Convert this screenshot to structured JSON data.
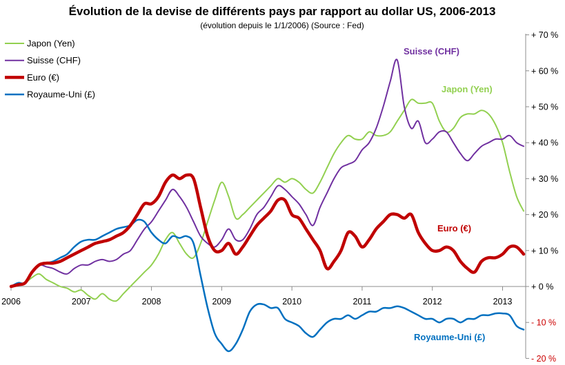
{
  "chart_data": {
    "type": "line",
    "title": "Évolution de la devise de différents pays par rapport au dollar US, 2006-2013",
    "subtitle": "(évolution depuis le 1/1/2006) (Source : Fed)",
    "x_ticks": [
      "2006",
      "2007",
      "2008",
      "2009",
      "2010",
      "2011",
      "2012",
      "2013"
    ],
    "y_ticks": [
      {
        "value": 70,
        "label": "+ 70 %"
      },
      {
        "value": 60,
        "label": "+ 60 %"
      },
      {
        "value": 50,
        "label": "+ 50 %"
      },
      {
        "value": 40,
        "label": "+ 40 %"
      },
      {
        "value": 30,
        "label": "+ 30 %"
      },
      {
        "value": 20,
        "label": "+ 20 %"
      },
      {
        "value": 10,
        "label": "+ 10 %"
      },
      {
        "value": 0,
        "label": "+ 0 %"
      },
      {
        "value": -10,
        "label": "- 10 %"
      },
      {
        "value": -20,
        "label": "- 20 %"
      }
    ],
    "negative_tick_color": "#cc0000",
    "xlim": [
      2006.0,
      2013.35
    ],
    "ylim": [
      -20,
      72
    ],
    "grid": false,
    "legend_position": "top-left",
    "series": [
      {
        "name": "Japon (Yen)",
        "color": "#92d050",
        "width": 2,
        "annotation": "Japon (Yen)",
        "x": [
          2006.0,
          2006.1,
          2006.2,
          2006.3,
          2006.4,
          2006.5,
          2006.6,
          2006.7,
          2006.8,
          2006.9,
          2007.0,
          2007.1,
          2007.2,
          2007.3,
          2007.4,
          2007.5,
          2007.6,
          2007.7,
          2007.8,
          2007.9,
          2008.0,
          2008.1,
          2008.2,
          2008.3,
          2008.4,
          2008.5,
          2008.6,
          2008.7,
          2008.8,
          2008.9,
          2009.0,
          2009.1,
          2009.2,
          2009.3,
          2009.4,
          2009.5,
          2009.6,
          2009.7,
          2009.8,
          2009.9,
          2010.0,
          2010.1,
          2010.2,
          2010.3,
          2010.4,
          2010.5,
          2010.6,
          2010.7,
          2010.8,
          2010.9,
          2011.0,
          2011.1,
          2011.2,
          2011.3,
          2011.4,
          2011.5,
          2011.6,
          2011.7,
          2011.8,
          2011.9,
          2012.0,
          2012.1,
          2012.2,
          2012.3,
          2012.4,
          2012.5,
          2012.6,
          2012.7,
          2012.8,
          2012.9,
          2013.0,
          2013.1,
          2013.2,
          2013.3
        ],
        "y": [
          0,
          0.5,
          1,
          2.5,
          3.5,
          2,
          1,
          0,
          -0.5,
          -1.5,
          -1,
          -2.5,
          -3.5,
          -2,
          -3.5,
          -4,
          -2,
          0,
          2,
          4,
          6,
          9,
          13,
          15,
          12,
          9,
          8,
          12,
          18,
          24,
          29,
          25,
          19,
          20,
          22,
          24,
          26,
          28,
          30,
          29,
          30,
          29,
          27,
          26,
          29,
          33,
          37,
          40,
          42,
          41,
          41,
          43,
          42,
          42,
          43,
          46,
          49,
          52,
          51,
          51,
          51,
          46,
          43,
          44,
          47,
          48,
          48,
          49,
          48,
          45,
          40,
          32,
          25,
          21
        ]
      },
      {
        "name": "Suisse (CHF)",
        "color": "#7030a0",
        "width": 2,
        "annotation": "Suisse (CHF)",
        "x": [
          2006.0,
          2006.1,
          2006.2,
          2006.3,
          2006.4,
          2006.5,
          2006.6,
          2006.7,
          2006.8,
          2006.9,
          2007.0,
          2007.1,
          2007.2,
          2007.3,
          2007.4,
          2007.5,
          2007.6,
          2007.7,
          2007.8,
          2007.9,
          2008.0,
          2008.1,
          2008.2,
          2008.3,
          2008.4,
          2008.5,
          2008.6,
          2008.7,
          2008.8,
          2008.9,
          2009.0,
          2009.1,
          2009.2,
          2009.3,
          2009.4,
          2009.5,
          2009.6,
          2009.7,
          2009.8,
          2009.9,
          2010.0,
          2010.1,
          2010.2,
          2010.3,
          2010.4,
          2010.5,
          2010.6,
          2010.7,
          2010.8,
          2010.9,
          2011.0,
          2011.1,
          2011.2,
          2011.3,
          2011.4,
          2011.5,
          2011.6,
          2011.7,
          2011.8,
          2011.9,
          2012.0,
          2012.1,
          2012.2,
          2012.3,
          2012.4,
          2012.5,
          2012.6,
          2012.7,
          2012.8,
          2012.9,
          2013.0,
          2013.1,
          2013.2,
          2013.3
        ],
        "y": [
          0,
          0.5,
          1,
          4,
          6,
          5.5,
          5,
          4,
          3.5,
          5,
          6,
          6,
          7,
          7.5,
          7,
          7.5,
          9,
          10,
          13,
          16,
          18,
          21,
          24,
          27,
          25,
          22,
          18,
          14,
          12,
          11,
          13,
          16,
          13,
          13,
          16,
          20,
          22,
          25,
          28,
          27,
          25,
          23,
          20,
          17,
          22,
          26,
          30,
          33,
          34,
          35,
          38,
          40,
          44,
          50,
          57,
          63,
          50,
          44,
          46,
          40,
          41,
          43,
          43,
          40,
          37,
          35,
          37,
          39,
          40,
          41,
          41,
          42,
          40,
          39
        ]
      },
      {
        "name": "Euro (€)",
        "color": "#c00000",
        "width": 4.5,
        "annotation": "Euro (€)",
        "x": [
          2006.0,
          2006.1,
          2006.2,
          2006.3,
          2006.4,
          2006.5,
          2006.6,
          2006.7,
          2006.8,
          2006.9,
          2007.0,
          2007.1,
          2007.2,
          2007.3,
          2007.4,
          2007.5,
          2007.6,
          2007.7,
          2007.8,
          2007.9,
          2008.0,
          2008.1,
          2008.2,
          2008.3,
          2008.4,
          2008.5,
          2008.6,
          2008.7,
          2008.8,
          2008.9,
          2009.0,
          2009.1,
          2009.2,
          2009.3,
          2009.4,
          2009.5,
          2009.6,
          2009.7,
          2009.8,
          2009.9,
          2010.0,
          2010.1,
          2010.2,
          2010.3,
          2010.4,
          2010.5,
          2010.6,
          2010.7,
          2010.8,
          2010.9,
          2011.0,
          2011.1,
          2011.2,
          2011.3,
          2011.4,
          2011.5,
          2011.6,
          2011.7,
          2011.8,
          2011.9,
          2012.0,
          2012.1,
          2012.2,
          2012.3,
          2012.4,
          2012.5,
          2012.6,
          2012.7,
          2012.8,
          2012.9,
          2013.0,
          2013.1,
          2013.2,
          2013.3
        ],
        "y": [
          0,
          0.5,
          1,
          4,
          6,
          6.5,
          6.5,
          7,
          8,
          9,
          10,
          11,
          12,
          12.5,
          13,
          14,
          15,
          17,
          20,
          23,
          23,
          25,
          29,
          31,
          30,
          31,
          30,
          22,
          14,
          10,
          10,
          12,
          9,
          11,
          14,
          17,
          19,
          21,
          24,
          24,
          20,
          19,
          16,
          13,
          10,
          5,
          7,
          10,
          15,
          14,
          11,
          13,
          16,
          18,
          20,
          20,
          19,
          20,
          15,
          12,
          10,
          10,
          11,
          10,
          7,
          5,
          4,
          7,
          8,
          8,
          9,
          11,
          11,
          9
        ]
      },
      {
        "name": "Royaume-Uni (£)",
        "color": "#0070c0",
        "width": 2.5,
        "annotation": "Royaume-Uni (£)",
        "x": [
          2006.0,
          2006.1,
          2006.2,
          2006.3,
          2006.4,
          2006.5,
          2006.6,
          2006.7,
          2006.8,
          2006.9,
          2007.0,
          2007.1,
          2007.2,
          2007.3,
          2007.4,
          2007.5,
          2007.6,
          2007.7,
          2007.8,
          2007.9,
          2008.0,
          2008.1,
          2008.2,
          2008.3,
          2008.4,
          2008.5,
          2008.6,
          2008.7,
          2008.8,
          2008.9,
          2009.0,
          2009.1,
          2009.2,
          2009.3,
          2009.4,
          2009.5,
          2009.6,
          2009.7,
          2009.8,
          2009.9,
          2010.0,
          2010.1,
          2010.2,
          2010.3,
          2010.4,
          2010.5,
          2010.6,
          2010.7,
          2010.8,
          2010.9,
          2011.0,
          2011.1,
          2011.2,
          2011.3,
          2011.4,
          2011.5,
          2011.6,
          2011.7,
          2011.8,
          2011.9,
          2012.0,
          2012.1,
          2012.2,
          2012.3,
          2012.4,
          2012.5,
          2012.6,
          2012.7,
          2012.8,
          2012.9,
          2013.0,
          2013.1,
          2013.2,
          2013.3
        ],
        "y": [
          0,
          1,
          1,
          4,
          6,
          6.5,
          7,
          8,
          9,
          11,
          12.5,
          13,
          13,
          14,
          15,
          16,
          16.5,
          17,
          18.5,
          18,
          15,
          13,
          12,
          14,
          13.5,
          14,
          12,
          3,
          -6,
          -13,
          -16,
          -18,
          -16,
          -12,
          -7,
          -5,
          -5,
          -6,
          -6,
          -9,
          -10,
          -11,
          -13,
          -14,
          -12,
          -10,
          -9,
          -9,
          -8,
          -9,
          -8,
          -7,
          -7,
          -6,
          -6,
          -5.5,
          -6,
          -7,
          -8,
          -9,
          -9,
          -10,
          -9,
          -9,
          -10,
          -9,
          -9,
          -8,
          -8,
          -7.5,
          -7.5,
          -8,
          -11,
          -12
        ]
      }
    ]
  }
}
